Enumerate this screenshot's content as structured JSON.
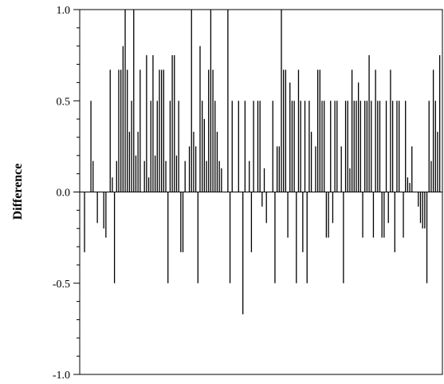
{
  "chart_data": {
    "type": "bar",
    "title": "",
    "xlabel": "",
    "ylabel": "Difference",
    "ylim": [
      -1.0,
      1.0
    ],
    "yticks": [
      "-1.0",
      "-0.5",
      "0.0",
      "0.5",
      "1.0"
    ],
    "grid": false,
    "legend": "none",
    "bar_color": "#000000",
    "values": [
      0,
      -0.33,
      0,
      0,
      0.5,
      0.17,
      0,
      -0.17,
      0,
      0,
      -0.2,
      -0.25,
      0,
      0.67,
      0.08,
      -0.5,
      0.17,
      0.67,
      0.67,
      0.8,
      1.0,
      0.67,
      0.33,
      0.5,
      1.0,
      0.2,
      0.33,
      0.67,
      0,
      0.17,
      0.75,
      0.08,
      0.5,
      0.75,
      0.2,
      0.5,
      0.67,
      0.67,
      0.67,
      0.17,
      -0.5,
      0.5,
      0.75,
      0.75,
      0.2,
      0.5,
      -0.33,
      -0.33,
      0.17,
      0,
      0.25,
      1.0,
      0.33,
      0.25,
      -0.5,
      0.8,
      0.5,
      0.4,
      0.17,
      0.67,
      1.0,
      0.67,
      0.5,
      0.33,
      0.17,
      0.13,
      0,
      0,
      1.0,
      -0.5,
      0.5,
      0,
      0,
      0.5,
      0,
      -0.67,
      0.5,
      0,
      0.17,
      -0.33,
      0.5,
      0,
      0.5,
      0.5,
      -0.08,
      0.13,
      -0.17,
      0,
      0,
      0.5,
      -0.5,
      0.25,
      0.25,
      1.0,
      0.67,
      0.67,
      -0.25,
      0.6,
      0.5,
      0.5,
      -0.5,
      0.67,
      0.5,
      -0.33,
      0.5,
      -0.5,
      0.5,
      0.33,
      0,
      0.25,
      0.67,
      0.67,
      0.5,
      0.5,
      -0.25,
      -0.25,
      0.5,
      -0.17,
      0.5,
      0.5,
      0,
      0.25,
      -0.5,
      0.5,
      0.5,
      0.13,
      0.67,
      0.5,
      0.5,
      0.6,
      0.5,
      -0.25,
      0.5,
      0.5,
      0.75,
      0.5,
      -0.25,
      0.67,
      0.5,
      0.5,
      -0.25,
      -0.25,
      0.5,
      -0.17,
      0.67,
      0.5,
      -0.33,
      0.5,
      0.5,
      0,
      -0.25,
      0.5,
      0.08,
      0.05,
      0.25,
      0,
      0,
      -0.08,
      -0.17,
      -0.2,
      -0.2,
      -0.5,
      0.5,
      0.17,
      0.67,
      0.5,
      0.33,
      0.75
    ]
  }
}
